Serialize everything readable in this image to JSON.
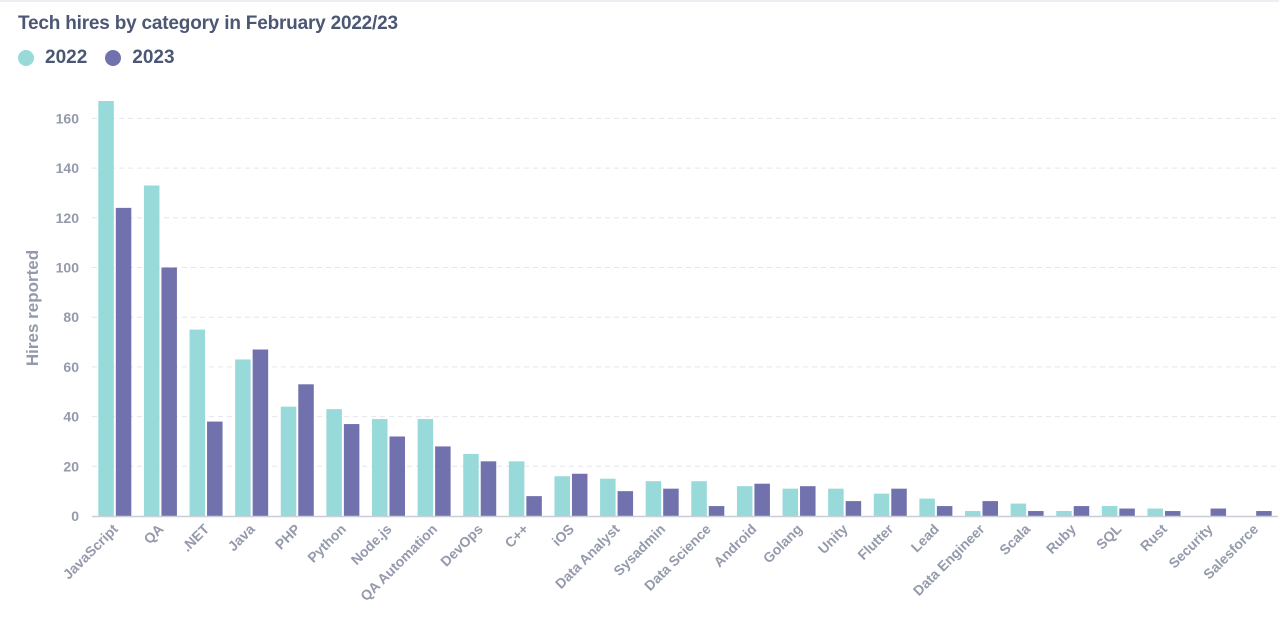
{
  "chart_data": {
    "type": "bar",
    "title": "Tech hires by category in February 2022/23",
    "xlabel": "",
    "ylabel": "Hires reported",
    "ylim": [
      0,
      170
    ],
    "yticks": [
      0,
      20,
      40,
      60,
      80,
      100,
      120,
      140,
      160
    ],
    "grid": true,
    "legend_position": "top-left",
    "categories": [
      "JavaScript",
      "QA",
      ".NET",
      "Java",
      "PHP",
      "Python",
      "Node.js",
      "QA Automation",
      "DevOps",
      "C++",
      "iOS",
      "Data Analyst",
      "Sysadmin",
      "Data Science",
      "Android",
      "Golang",
      "Unity",
      "Flutter",
      "Lead",
      "Data Engineer",
      "Scala",
      "Ruby",
      "SQL",
      "Rust",
      "Security",
      "Salesforce"
    ],
    "series": [
      {
        "name": "2022",
        "color": "#98d9d9",
        "values": [
          167,
          133,
          75,
          63,
          44,
          43,
          39,
          39,
          25,
          22,
          16,
          15,
          14,
          14,
          12,
          11,
          11,
          9,
          7,
          2,
          5,
          2,
          4,
          3,
          0,
          0
        ]
      },
      {
        "name": "2023",
        "color": "#7172ad",
        "values": [
          124,
          100,
          38,
          67,
          53,
          37,
          32,
          28,
          22,
          8,
          17,
          10,
          11,
          4,
          13,
          12,
          6,
          11,
          4,
          6,
          2,
          4,
          3,
          2,
          3,
          2
        ]
      }
    ]
  }
}
